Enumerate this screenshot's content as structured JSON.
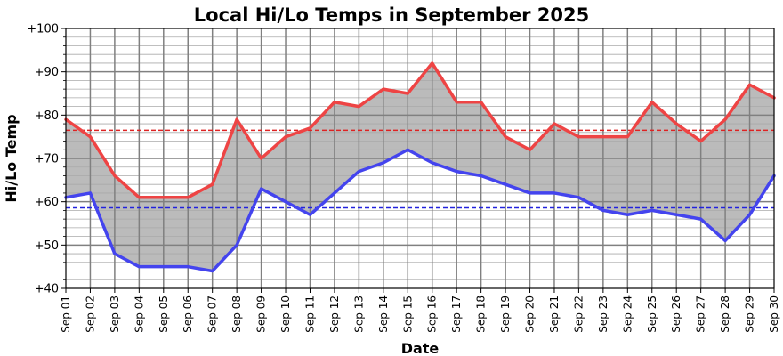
{
  "chart_data": {
    "type": "area",
    "title": "Local Hi/Lo Temps in September 2025",
    "xlabel": "Date",
    "ylabel": "Hi/Lo Temp",
    "ylim": [
      40,
      100
    ],
    "y_ticks": [
      "+40",
      "+50",
      "+60",
      "+70",
      "+80",
      "+90",
      "+100"
    ],
    "y_minor_step": 2,
    "grid": true,
    "categories": [
      "Sep 01",
      "Sep 02",
      "Sep 03",
      "Sep 04",
      "Sep 05",
      "Sep 06",
      "Sep 07",
      "Sep 08",
      "Sep 09",
      "Sep 10",
      "Sep 11",
      "Sep 12",
      "Sep 13",
      "Sep 14",
      "Sep 15",
      "Sep 16",
      "Sep 17",
      "Sep 18",
      "Sep 19",
      "Sep 20",
      "Sep 21",
      "Sep 22",
      "Sep 23",
      "Sep 24",
      "Sep 25",
      "Sep 26",
      "Sep 27",
      "Sep 28",
      "Sep 29",
      "Sep 30"
    ],
    "series": [
      {
        "color": "#ee4444",
        "values": [
          79,
          75,
          66,
          61,
          61,
          61,
          64,
          79,
          70,
          75,
          77,
          83,
          82,
          86,
          85,
          92,
          83,
          83,
          75,
          72,
          78,
          75,
          75,
          75,
          83,
          78,
          74,
          79,
          87,
          84
        ]
      },
      {
        "color": "#4444ee",
        "values": [
          61,
          62,
          48,
          45,
          45,
          45,
          44,
          50,
          63,
          60,
          57,
          62,
          67,
          69,
          72,
          69,
          67,
          66,
          64,
          62,
          62,
          61,
          58,
          57,
          58,
          57,
          56,
          51,
          57,
          66
        ]
      }
    ],
    "fill_color": "#bbbbbb",
    "reference_lines": [
      {
        "value": 76.5,
        "color": "#dd2222"
      },
      {
        "value": 58.6,
        "color": "#2222dd"
      }
    ]
  }
}
